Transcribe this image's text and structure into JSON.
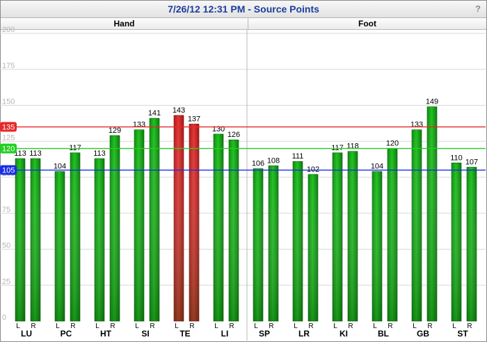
{
  "window": {
    "title": "7/26/12 12:31 PM - Source Points",
    "help_label": "?"
  },
  "sections": {
    "left": "Hand",
    "right": "Foot"
  },
  "colors": {
    "bar_green": "#1fc01f",
    "bar_red": "#e23434",
    "line_red": "#e82727",
    "line_green": "#21cf21",
    "line_blue": "#1a2fe6",
    "grid": "#d8d8d8",
    "tick_text": "#b5b5b5",
    "title": "#1a3d9c"
  },
  "chart_data": {
    "type": "bar",
    "ylim": [
      0,
      200
    ],
    "yticks": [
      "0",
      "25",
      "50",
      "75",
      "100",
      "125",
      "150",
      "175",
      "200"
    ],
    "grid": true,
    "reference_lines": [
      {
        "label": "135",
        "value": 135,
        "color": "#e82727"
      },
      {
        "label": "120",
        "value": 120,
        "color": "#21cf21"
      },
      {
        "label": "105",
        "value": 105,
        "color": "#1a2fe6"
      }
    ],
    "groups": [
      {
        "name": "LU",
        "section": "Hand",
        "bars": [
          {
            "side": "L",
            "value": 113,
            "status": "normal"
          },
          {
            "side": "R",
            "value": 113,
            "status": "normal"
          }
        ]
      },
      {
        "name": "PC",
        "section": "Hand",
        "bars": [
          {
            "side": "L",
            "value": 104,
            "status": "normal"
          },
          {
            "side": "R",
            "value": 117,
            "status": "normal"
          }
        ]
      },
      {
        "name": "HT",
        "section": "Hand",
        "bars": [
          {
            "side": "L",
            "value": 113,
            "status": "normal"
          },
          {
            "side": "R",
            "value": 129,
            "status": "normal"
          }
        ]
      },
      {
        "name": "SI",
        "section": "Hand",
        "bars": [
          {
            "side": "L",
            "value": 133,
            "status": "normal"
          },
          {
            "side": "R",
            "value": 141,
            "status": "normal"
          }
        ]
      },
      {
        "name": "TE",
        "section": "Hand",
        "bars": [
          {
            "side": "L",
            "value": 143,
            "status": "high"
          },
          {
            "side": "R",
            "value": 137,
            "status": "high"
          }
        ]
      },
      {
        "name": "LI",
        "section": "Hand",
        "bars": [
          {
            "side": "L",
            "value": 130,
            "status": "normal"
          },
          {
            "side": "R",
            "value": 126,
            "status": "normal"
          }
        ]
      },
      {
        "name": "SP",
        "section": "Foot",
        "bars": [
          {
            "side": "L",
            "value": 106,
            "status": "normal"
          },
          {
            "side": "R",
            "value": 108,
            "status": "normal"
          }
        ]
      },
      {
        "name": "LR",
        "section": "Foot",
        "bars": [
          {
            "side": "L",
            "value": 111,
            "status": "normal"
          },
          {
            "side": "R",
            "value": 102,
            "status": "normal"
          }
        ]
      },
      {
        "name": "KI",
        "section": "Foot",
        "bars": [
          {
            "side": "L",
            "value": 117,
            "status": "normal"
          },
          {
            "side": "R",
            "value": 118,
            "status": "normal"
          }
        ]
      },
      {
        "name": "BL",
        "section": "Foot",
        "bars": [
          {
            "side": "L",
            "value": 104,
            "status": "normal"
          },
          {
            "side": "R",
            "value": 120,
            "status": "normal"
          }
        ]
      },
      {
        "name": "GB",
        "section": "Foot",
        "bars": [
          {
            "side": "L",
            "value": 133,
            "status": "normal"
          },
          {
            "side": "R",
            "value": 149,
            "status": "normal"
          }
        ]
      },
      {
        "name": "ST",
        "section": "Foot",
        "bars": [
          {
            "side": "L",
            "value": 110,
            "status": "normal"
          },
          {
            "side": "R",
            "value": 107,
            "status": "normal"
          }
        ]
      }
    ]
  }
}
